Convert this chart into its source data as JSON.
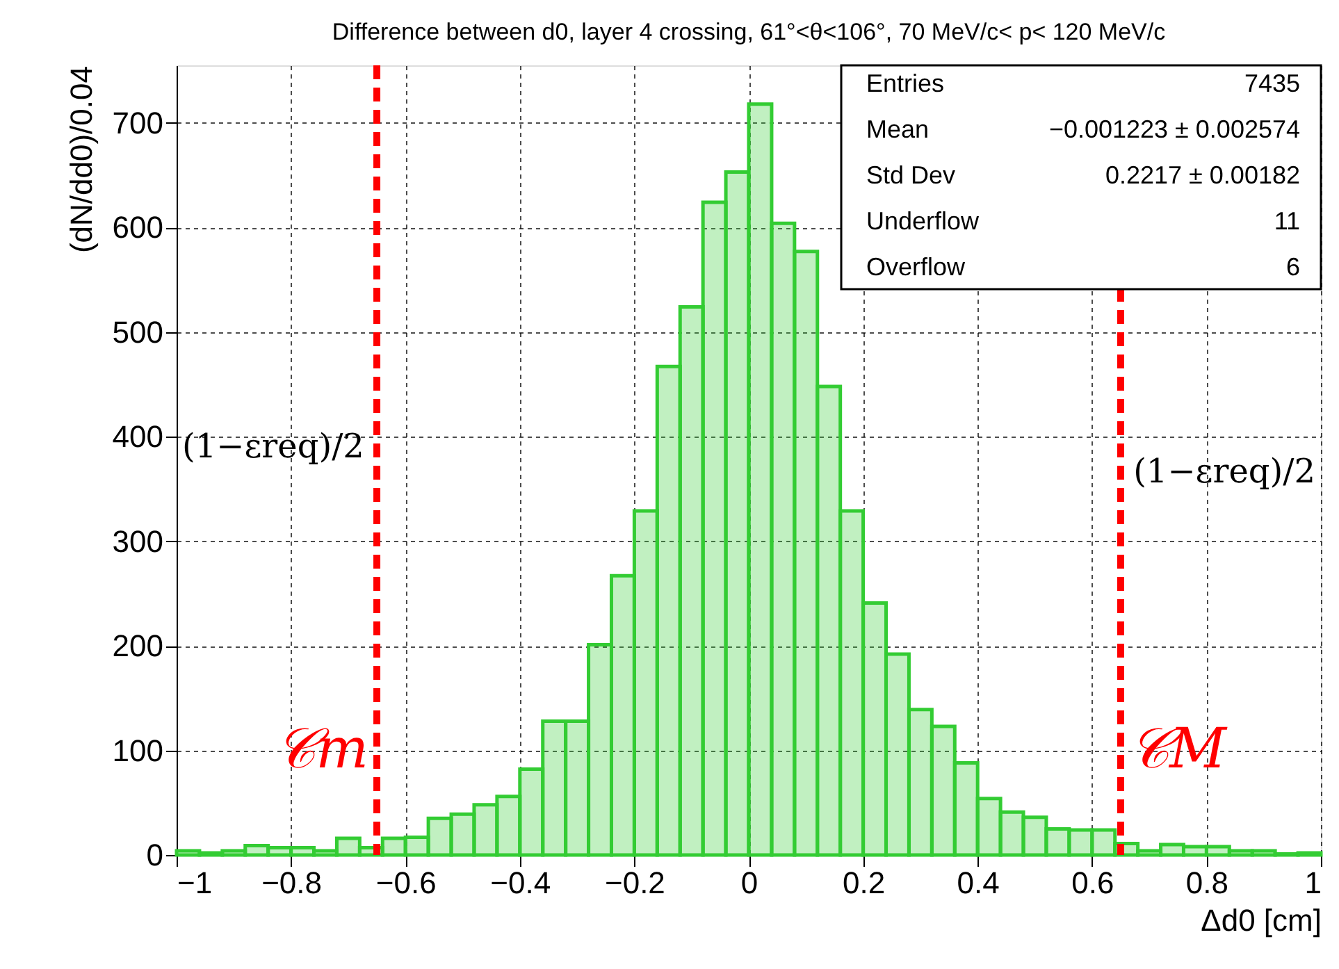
{
  "chart_data": {
    "type": "histogram",
    "title": "Difference between d0, layer 4 crossing, 61°<θ<106°, 70 MeV/c< p< 120 MeV/c",
    "xlabel": "Δd0 [cm]",
    "ylabel": "(dN/dd0)/0.04",
    "bins": [
      -1.0,
      -0.96,
      -0.92,
      -0.88,
      -0.84,
      -0.8,
      -0.76,
      -0.72,
      -0.68,
      -0.64,
      -0.6,
      -0.56,
      -0.52,
      -0.48,
      -0.44,
      -0.4,
      -0.36,
      -0.32,
      -0.28,
      -0.24,
      -0.2,
      -0.16,
      -0.12,
      -0.08,
      -0.04,
      0.0,
      0.04,
      0.08,
      0.12,
      0.16,
      0.2,
      0.24,
      0.28,
      0.32,
      0.36,
      0.4,
      0.44,
      0.48,
      0.52,
      0.56,
      0.6,
      0.64,
      0.68,
      0.72,
      0.76,
      0.8,
      0.84,
      0.88,
      0.92,
      0.96,
      1.0
    ],
    "series": [
      {
        "color": "#33cc33",
        "values": [
          4,
          2,
          4,
          9,
          7,
          7,
          4,
          16,
          7,
          16,
          17,
          35,
          39,
          48,
          56,
          82,
          128,
          128,
          201,
          267,
          329,
          467,
          524,
          624,
          653,
          718,
          604,
          577,
          448,
          329,
          241,
          192,
          139,
          123,
          88,
          54,
          41,
          36,
          25,
          24,
          24,
          11,
          4,
          10,
          8,
          8,
          4,
          4,
          1,
          2
        ]
      }
    ],
    "xlim": [
      -1,
      1
    ],
    "xticks": [
      -1,
      -0.8,
      -0.6,
      -0.4,
      -0.2,
      0,
      0.2,
      0.4,
      0.6,
      0.8,
      1
    ],
    "ylim": [
      0,
      755
    ],
    "yticks": [
      0,
      100,
      200,
      300,
      400,
      500,
      600,
      700
    ],
    "grid": true,
    "legend": false,
    "ref_lines": [
      {
        "axis": "x",
        "value": -0.65,
        "label": "𝒞m",
        "color": "#ff0000",
        "line_style": "dashed"
      },
      {
        "axis": "x",
        "value": 0.65,
        "label": "𝒞M",
        "color": "#ff0000",
        "line_style": "dashed"
      }
    ],
    "annotations": [
      "Entries",
      "7435",
      "Mean",
      "−0.001223 ± 0.002574",
      "Std Dev",
      "0.2217 ± 0.00182",
      "Underflow",
      "11",
      "Overflow",
      "6",
      "(1−εreq)/2",
      "(1−εreq)/2"
    ]
  }
}
